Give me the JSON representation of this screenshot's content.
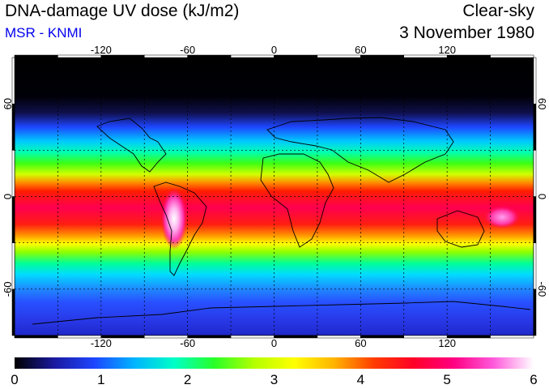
{
  "header": {
    "title": "DNA-damage UV dose (kJ/m2)",
    "subtitle": "MSR - KNMI",
    "condition": "Clear-sky",
    "date": "3 November 1980"
  },
  "map": {
    "lon_range": [
      -180,
      180
    ],
    "lat_range": [
      -90,
      90
    ],
    "lon_ticks": [
      -120,
      -60,
      0,
      60,
      120
    ],
    "lat_ticks": [
      60,
      0,
      -60
    ],
    "grid_lon": [
      -150,
      -120,
      -90,
      -60,
      -30,
      0,
      30,
      60,
      90,
      120,
      150
    ],
    "grid_lat": [
      -60,
      -30,
      0,
      30,
      60
    ],
    "grid": "dashed",
    "feature": "Maximum over the Andes (~6 kJ/m2) and high values (>4) in the tropics; very low (<0.5) poleward of 60N"
  },
  "colorbar": {
    "min": 0,
    "max": 6,
    "tick_labels": [
      "0",
      "1",
      "2",
      "3",
      "4",
      "5",
      "6"
    ],
    "colors": [
      "#000000",
      "#1a1aa0",
      "#1e46ff",
      "#00b4ff",
      "#00ffc8",
      "#28ff28",
      "#b4ff00",
      "#ffff00",
      "#ffb400",
      "#ff3c00",
      "#ff0028",
      "#ff0082",
      "#ff5adc",
      "#ffffff"
    ]
  }
}
